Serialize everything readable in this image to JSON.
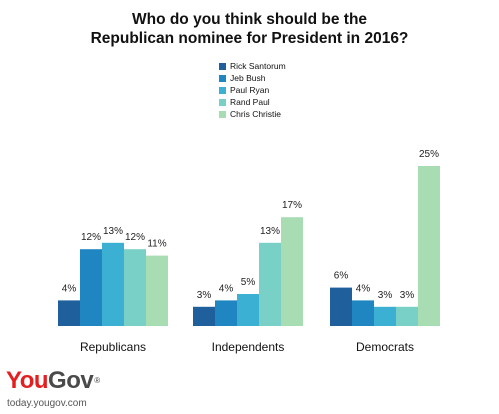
{
  "title_line1": "Who do you think should be the",
  "title_line2": "Republican nominee for President in 2016?",
  "brand": {
    "name_a": "You",
    "name_b": "Gov",
    "registered": "®",
    "url": "today.yougov.com",
    "colors": {
      "you": "#e41f1f",
      "gov": "#4a4a4a"
    }
  },
  "chart_data": {
    "type": "bar",
    "title": "Who do you think should be the Republican nominee for President in 2016?",
    "categories": [
      "Republicans",
      "Independents",
      "Democrats"
    ],
    "series": [
      {
        "name": "Rick Santorum",
        "color": "#1f5f9c",
        "values": [
          4,
          3,
          6
        ]
      },
      {
        "name": "Jeb Bush",
        "color": "#1f86c1",
        "values": [
          12,
          4,
          4
        ]
      },
      {
        "name": "Paul Ryan",
        "color": "#3cb0d3",
        "values": [
          13,
          5,
          3
        ]
      },
      {
        "name": "Rand Paul",
        "color": "#78d0c7",
        "values": [
          12,
          13,
          3
        ]
      },
      {
        "name": "Chris Christie",
        "color": "#a8dcb3",
        "values": [
          11,
          17,
          25
        ]
      }
    ],
    "value_suffix": "%",
    "ylim": [
      0,
      25
    ],
    "legend": "top-center",
    "grid": false
  }
}
